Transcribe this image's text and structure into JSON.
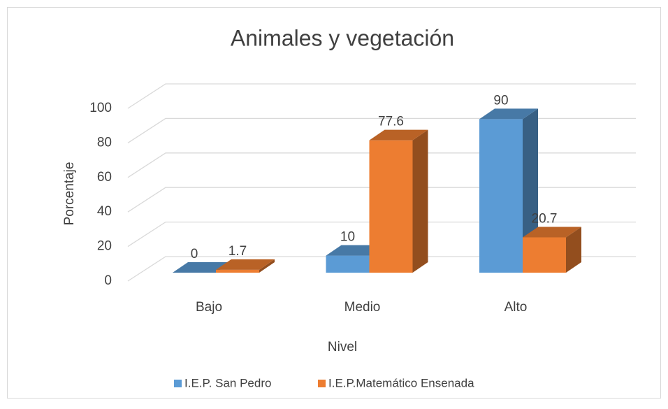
{
  "chart_data": {
    "type": "bar3d",
    "title": "Animales y vegetación",
    "x_label": "Nivel",
    "y_label": "Porcentaje",
    "categories": [
      "Bajo",
      "Medio",
      "Alto"
    ],
    "series": [
      {
        "name": "I.E.P. San Pedro",
        "color": "#5b9bd5",
        "values": [
          0,
          10,
          90
        ]
      },
      {
        "name": "I.E.P.Matemático Ensenada",
        "color": "#ed7d31",
        "values": [
          1.7,
          77.6,
          20.7
        ]
      }
    ],
    "ylim": [
      0,
      100
    ],
    "yticks": [
      0,
      20,
      40,
      60,
      80,
      100
    ],
    "grid": true,
    "legend": "bottom"
  }
}
